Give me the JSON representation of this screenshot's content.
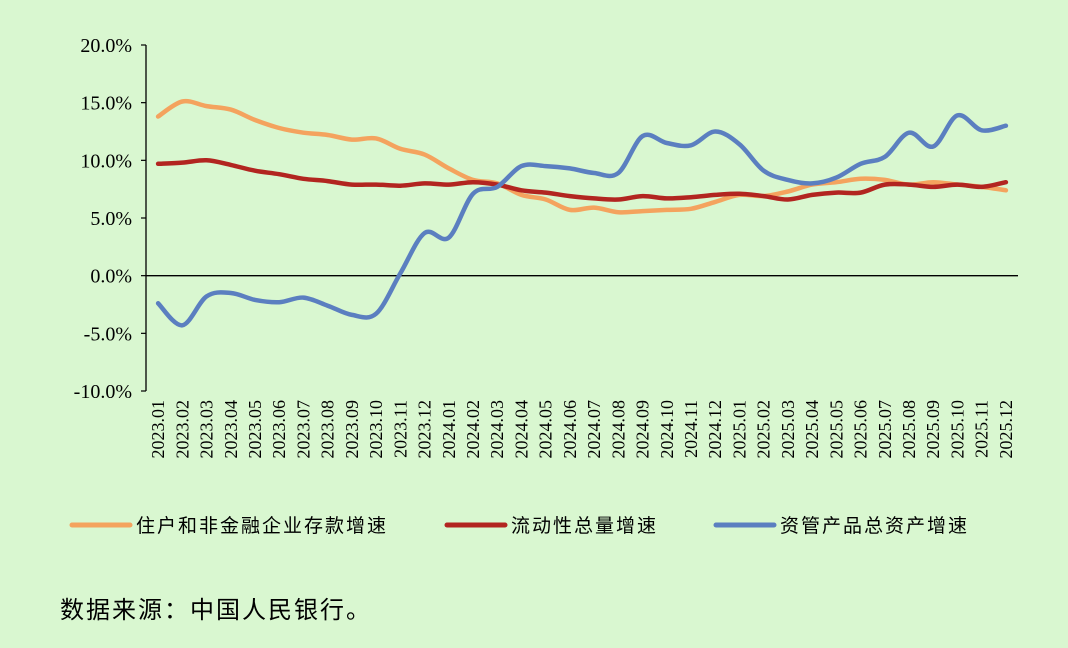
{
  "source_note": "数据来源：中国人民银行。",
  "chart_data": {
    "type": "line",
    "ylim": [
      -10,
      20
    ],
    "yticks": [
      20,
      15,
      10,
      5,
      0,
      -5,
      -10
    ],
    "ytick_labels": [
      "20.0%",
      "15.0%",
      "10.0%",
      "5.0%",
      "0.0%",
      "-5.0%",
      "-10.0%"
    ],
    "categories": [
      "2023.01",
      "2023.02",
      "2023.03",
      "2023.04",
      "2023.05",
      "2023.06",
      "2023.07",
      "2023.08",
      "2023.09",
      "2023.10",
      "2023.11",
      "2023.12",
      "2024.01",
      "2024.02",
      "2024.03",
      "2024.04",
      "2024.05",
      "2024.06",
      "2024.07",
      "2024.08",
      "2024.09",
      "2024.10",
      "2024.11",
      "2024.12",
      "2025.01",
      "2025.02",
      "2025.03",
      "2025.04",
      "2025.05",
      "2025.06",
      "2025.07",
      "2025.08",
      "2025.09",
      "2025.10",
      "2025.11",
      "2025.12"
    ],
    "legend_position": "bottom",
    "grid": false,
    "series": [
      {
        "name": "住户和非金融企业存款增速",
        "color": "#f4a35e",
        "values": [
          13.8,
          15.1,
          14.7,
          14.4,
          13.5,
          12.8,
          12.4,
          12.2,
          11.8,
          11.9,
          11.0,
          10.5,
          9.3,
          8.3,
          8.0,
          7.0,
          6.6,
          5.7,
          5.9,
          5.5,
          5.6,
          5.7,
          5.8,
          6.4,
          7.0,
          6.9,
          7.3,
          7.9,
          8.1,
          8.4,
          8.3,
          7.9,
          8.1,
          7.9,
          7.7,
          7.4
        ]
      },
      {
        "name": "流动性总量增速",
        "color": "#b22520",
        "values": [
          9.7,
          9.8,
          10.0,
          9.6,
          9.1,
          8.8,
          8.4,
          8.2,
          7.9,
          7.9,
          7.8,
          8.0,
          7.9,
          8.1,
          7.9,
          7.4,
          7.2,
          6.9,
          6.7,
          6.6,
          6.9,
          6.7,
          6.8,
          7.0,
          7.1,
          6.9,
          6.6,
          7.0,
          7.2,
          7.2,
          7.9,
          7.9,
          7.7,
          7.9,
          7.7,
          8.1
        ]
      },
      {
        "name": "资管产品总资产增速",
        "color": "#5b7fc0",
        "values": [
          -2.4,
          -4.3,
          -1.8,
          -1.5,
          -2.1,
          -2.3,
          -1.9,
          -2.6,
          -3.4,
          -3.3,
          0.2,
          3.7,
          3.3,
          7.1,
          7.7,
          9.5,
          9.5,
          9.3,
          8.9,
          8.9,
          12.1,
          11.5,
          11.3,
          12.5,
          11.4,
          9.1,
          8.3,
          8.0,
          8.5,
          9.7,
          10.3,
          12.4,
          11.2,
          13.9,
          12.6,
          13.0
        ]
      }
    ]
  }
}
